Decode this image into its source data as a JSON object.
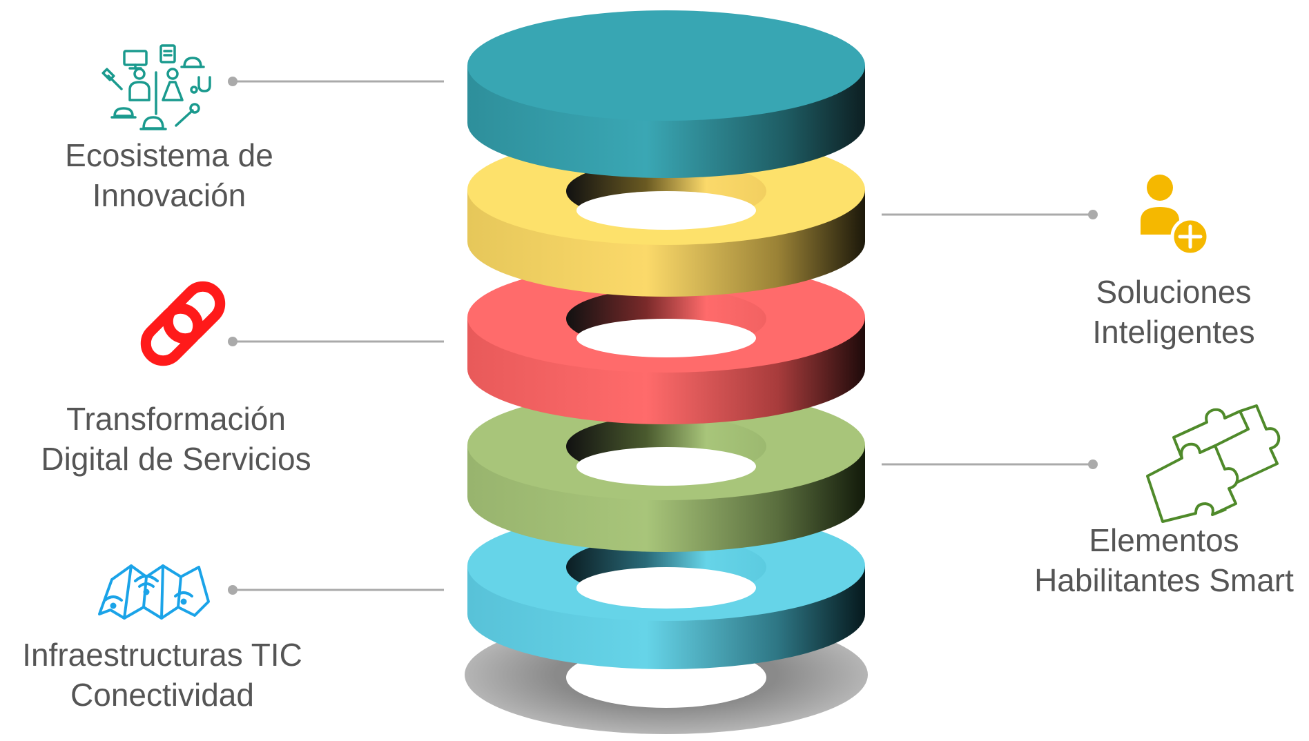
{
  "colors": {
    "layer_top": "#3aa7b4",
    "layer_2": "#fde16b",
    "layer_3": "#ff6b6b",
    "layer_4": "#a8c57a",
    "layer_5": "#66d4e8",
    "shadow": "#9a9a9a",
    "connector": "#aaaaaa",
    "icon_teal": "#1a9a8e",
    "icon_yellow": "#f5b800",
    "icon_red": "#ff1a1a",
    "icon_green": "#4f8a2a",
    "icon_blue": "#1aa3e8",
    "text": "#555555"
  },
  "layers": [
    {
      "name": "layer-top-disc",
      "type": "disc",
      "color": "#3aa7b4"
    },
    {
      "name": "layer-2-ring",
      "type": "ring",
      "color": "#fde16b"
    },
    {
      "name": "layer-3-ring",
      "type": "ring",
      "color": "#ff6b6b"
    },
    {
      "name": "layer-4-ring",
      "type": "ring",
      "color": "#a8c57a"
    },
    {
      "name": "layer-5-ring",
      "type": "ring",
      "color": "#66d4e8"
    }
  ],
  "labels": {
    "ecosistema": {
      "line1": "Ecosistema de",
      "line2": "Innovación",
      "icon": "people-services-icon"
    },
    "transformacion": {
      "line1": "Transformación",
      "line2": "Digital de Servicios",
      "icon": "chain-link-icon"
    },
    "infraestructuras": {
      "line1": "Infraestructuras TIC",
      "line2": "Conectividad",
      "icon": "wifi-map-icon"
    },
    "soluciones": {
      "line1": "Soluciones",
      "line2": "Inteligentes",
      "icon": "add-user-icon"
    },
    "elementos": {
      "line1": "Elementos",
      "line2": "Habilitantes Smart",
      "icon": "puzzle-icon"
    }
  }
}
